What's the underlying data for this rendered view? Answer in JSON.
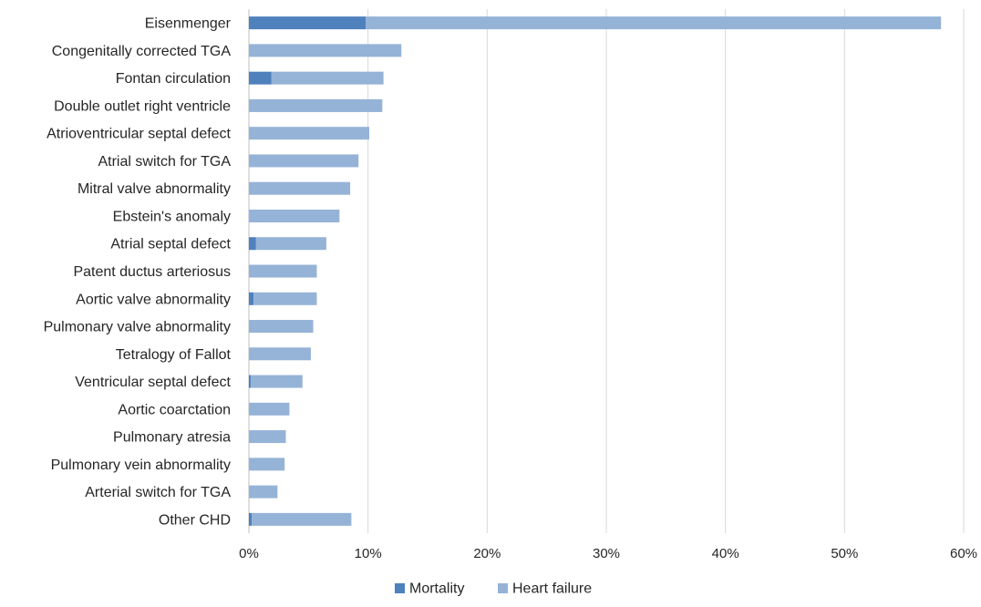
{
  "colors": {
    "mortality": "#4f81bd",
    "heart_failure": "#95b3d7",
    "gridline": "#d9d9d9",
    "text": "#262626"
  },
  "chart_data": {
    "type": "bar",
    "orientation": "horizontal",
    "stacked": true,
    "categories": [
      "Eisenmenger",
      "Congenitally corrected TGA",
      "Fontan circulation",
      "Double outlet right ventricle",
      "Atrioventricular septal defect",
      "Atrial switch for TGA",
      "Mitral valve abnormality",
      "Ebstein's anomaly",
      "Atrial septal defect",
      "Patent ductus arteriosus",
      "Aortic valve abnormality",
      "Pulmonary valve abnormality",
      "Tetralogy of Fallot",
      "Ventricular septal defect",
      "Aortic coarctation",
      "Pulmonary atresia",
      "Pulmonary vein abnormality",
      "Arterial switch for TGA",
      "Other CHD"
    ],
    "series": [
      {
        "name": "Mortality",
        "values": [
          9.8,
          0,
          1.9,
          0,
          0,
          0,
          0,
          0,
          0.6,
          0,
          0.4,
          0,
          0,
          0.15,
          0,
          0,
          0,
          0,
          0.25
        ]
      },
      {
        "name": "Heart failure",
        "values": [
          48.3,
          12.8,
          9.4,
          11.2,
          10.1,
          9.2,
          8.5,
          7.6,
          5.9,
          5.7,
          5.3,
          5.4,
          5.2,
          4.35,
          3.4,
          3.1,
          3.0,
          2.4,
          8.35
        ]
      }
    ],
    "xlim": [
      0,
      60
    ],
    "xticks": [
      "0%",
      "10%",
      "20%",
      "30%",
      "40%",
      "50%",
      "60%"
    ],
    "xlabel": "",
    "ylabel": "",
    "title": "",
    "grid": "vertical",
    "legend": {
      "position": "bottom",
      "labels": [
        "Mortality",
        "Heart failure"
      ]
    }
  }
}
